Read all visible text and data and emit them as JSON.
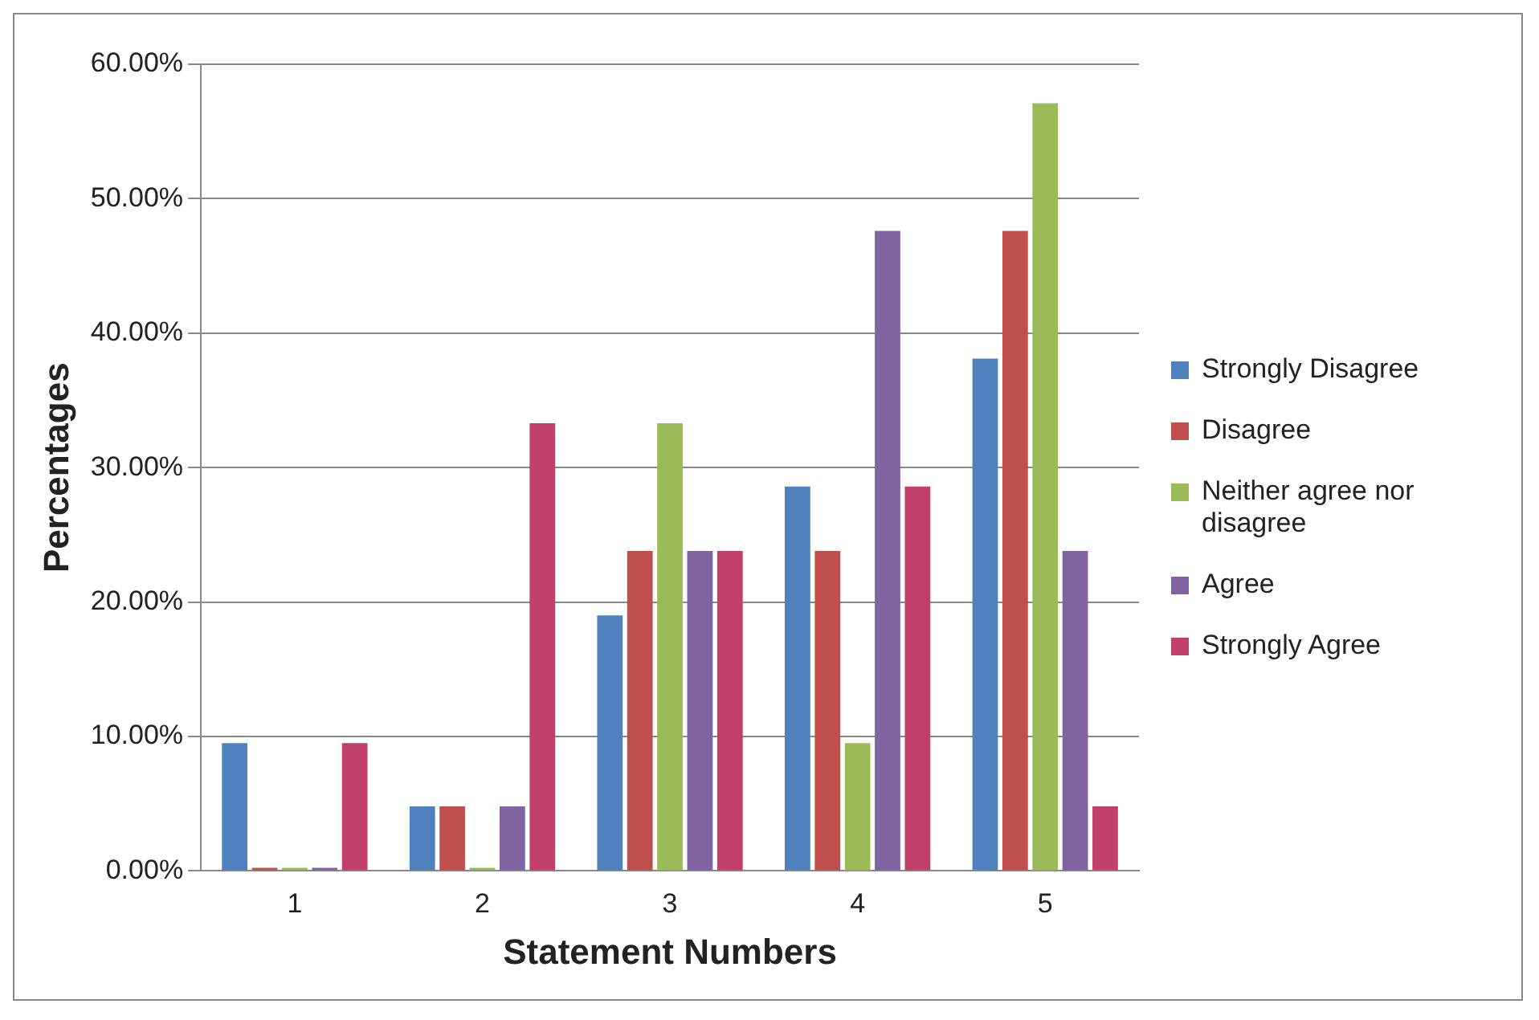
{
  "chart_data": {
    "type": "bar",
    "xlabel": "Statement Numbers",
    "ylabel": "Percentages",
    "categories": [
      "1",
      "2",
      "3",
      "4",
      "5"
    ],
    "series": [
      {
        "name": "Strongly Disagree",
        "color": "#4f81bd",
        "values": [
          9.5,
          4.8,
          19,
          28.6,
          38.1
        ]
      },
      {
        "name": "Disagree",
        "color": "#c0504d",
        "values": [
          0,
          4.8,
          23.8,
          23.8,
          47.6
        ]
      },
      {
        "name": "Neither agree nor disagree",
        "color": "#9bbb59",
        "values": [
          0,
          0,
          33.3,
          9.5,
          57.1
        ]
      },
      {
        "name": "Agree",
        "color": "#8064a2",
        "values": [
          0,
          4.8,
          23.8,
          47.6,
          23.8
        ]
      },
      {
        "name": "Strongly Agree",
        "color": "#c0406a",
        "values": [
          9.5,
          33.3,
          23.8,
          28.6,
          4.8
        ]
      }
    ],
    "ylim": [
      0,
      60
    ],
    "yticks": [
      {
        "value": 0,
        "label": "0.00%"
      },
      {
        "value": 10,
        "label": "10.00%"
      },
      {
        "value": 20,
        "label": "20.00%"
      },
      {
        "value": 30,
        "label": "30.00%"
      },
      {
        "value": 40,
        "label": "40.00%"
      },
      {
        "value": 50,
        "label": "50.00%"
      },
      {
        "value": 60,
        "label": "60.00%"
      }
    ],
    "grid": "y",
    "legend": "right"
  }
}
